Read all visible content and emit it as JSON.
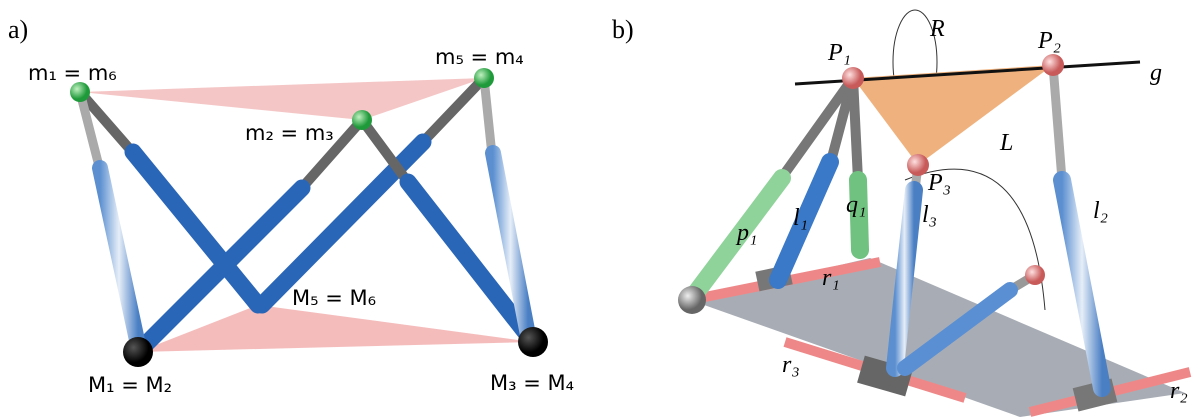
{
  "panel_a": {
    "tag": "a)",
    "labels": [
      "m₁ = m₆",
      "m₅ = m₄",
      "m₂ = m₃",
      "M₅ = M₆",
      "M₁ = M₂",
      "M₃ = M₄"
    ]
  },
  "panel_b": {
    "tag": "b)",
    "labels": [
      "P₁",
      "P₂",
      "P₃",
      "R",
      "g",
      "L",
      "p₁",
      "l₁",
      "q₁",
      "l₃",
      "l₂",
      "r₁",
      "r₃",
      "r₂"
    ]
  }
}
